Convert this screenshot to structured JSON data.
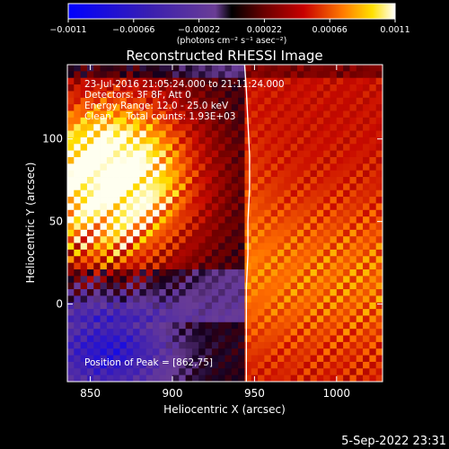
{
  "chart_data": {
    "type": "heatmap",
    "title": "Reconstructed RHESSI Image",
    "xlabel": "Heliocentric X (arcsec)",
    "ylabel": "Heliocentric Y (arcsec)",
    "xlim": [
      836,
      1028
    ],
    "ylim": [
      -47,
      145
    ],
    "x_ticks": [
      {
        "v": 850,
        "label": "850"
      },
      {
        "v": 900,
        "label": "900"
      },
      {
        "v": 950,
        "label": "950"
      },
      {
        "v": 1000,
        "label": "1000"
      }
    ],
    "y_ticks": [
      {
        "v": 0,
        "label": "0"
      },
      {
        "v": 50,
        "label": "50"
      },
      {
        "v": 100,
        "label": "100"
      }
    ],
    "colorbar": {
      "range": [
        -0.0011,
        0.0011
      ],
      "ticks": [
        {
          "v": -0.0011,
          "label": "−0.0011"
        },
        {
          "v": -0.00066,
          "label": "−0.00066"
        },
        {
          "v": -0.00022,
          "label": "−0.00022"
        },
        {
          "v": 0.00022,
          "label": "0.00022"
        },
        {
          "v": 0.00066,
          "label": "0.00066"
        },
        {
          "v": 0.0011,
          "label": "0.0011"
        }
      ],
      "units_label": "(photons cm⁻² s⁻¹ asec⁻²)"
    },
    "annotations": [
      "23-Jul-2016 21:05:24.000 to 21:11:24.000",
      "Detectors: 3F 8F, Att 0",
      "Energy Range: 12.0 - 25.0 keV",
      "Clean     Total counts: 1.93E+03"
    ],
    "peak_label": "Position of Peak = [862,75]",
    "peak_position": [
      862,
      75
    ],
    "limb": [
      [
        944,
        145
      ],
      [
        945,
        130
      ],
      [
        946,
        110
      ],
      [
        947,
        90
      ],
      [
        947,
        70
      ],
      [
        946,
        50
      ],
      [
        946,
        30
      ],
      [
        945,
        10
      ],
      [
        945,
        -10
      ],
      [
        945,
        -30
      ],
      [
        945,
        -47
      ]
    ],
    "limb_color": "#ffffff"
  },
  "footer": {
    "timestamp": "5-Sep-2022 23:31"
  }
}
